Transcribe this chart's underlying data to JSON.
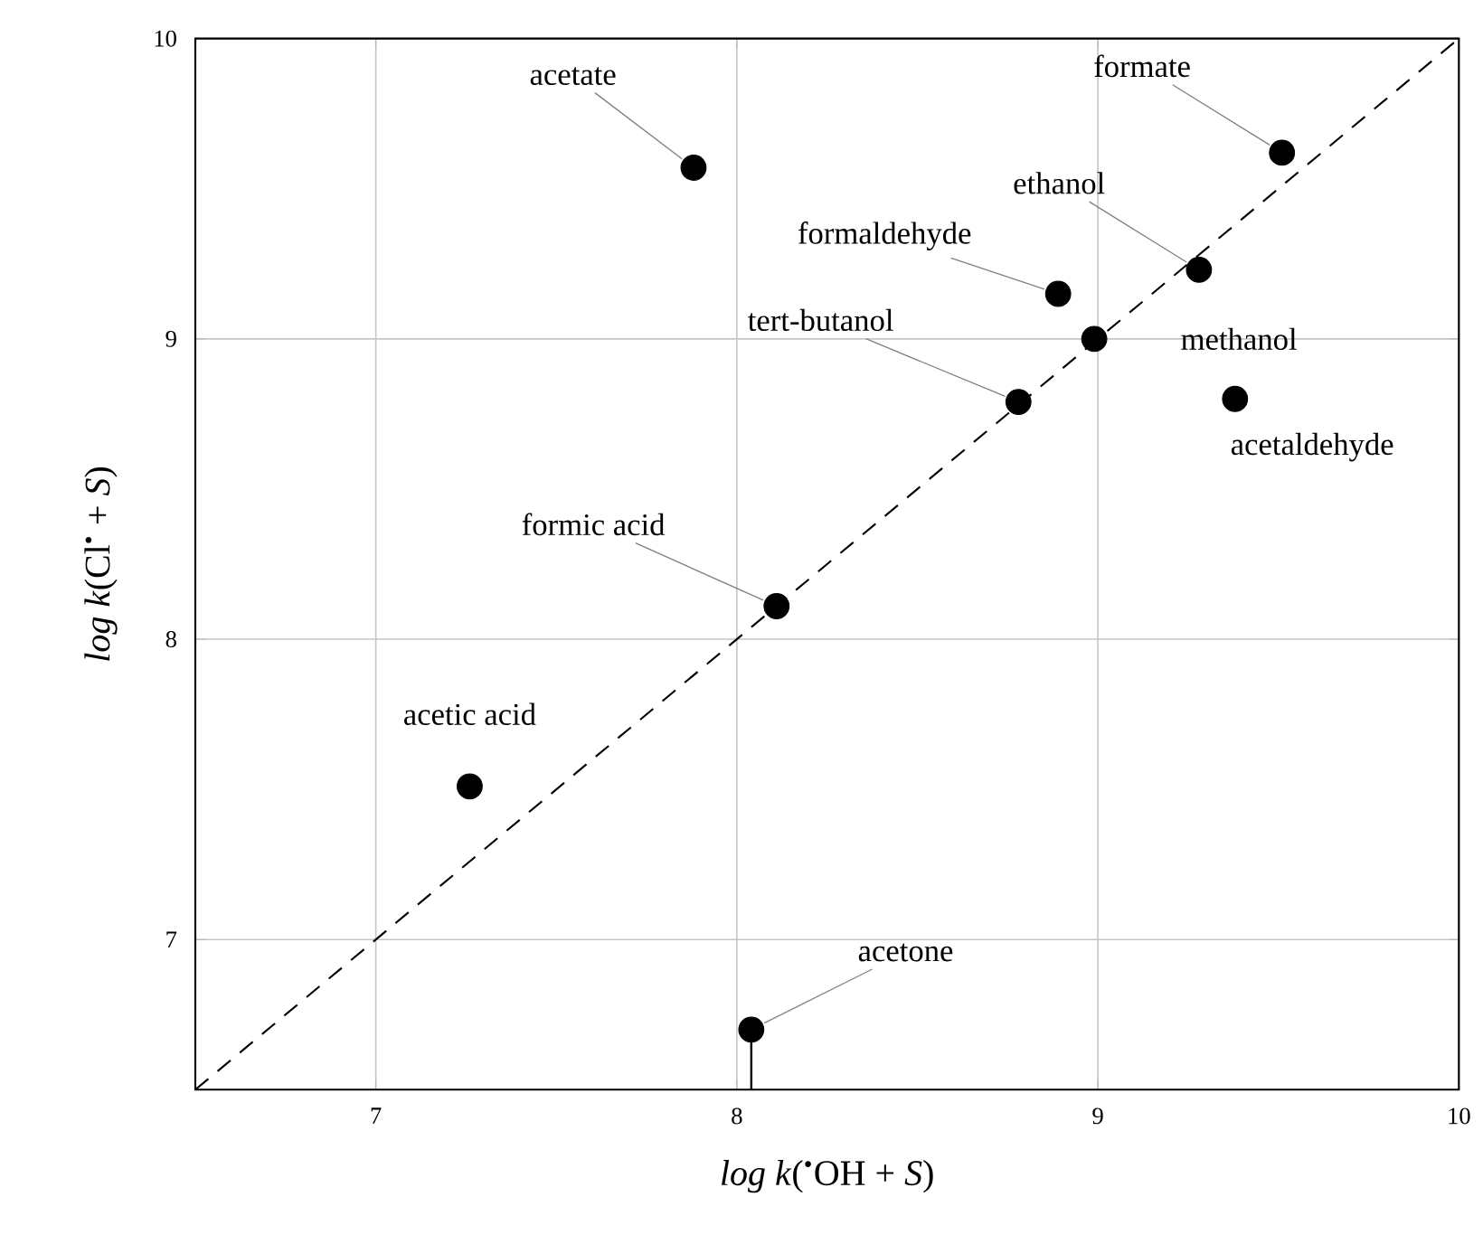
{
  "chart_data": {
    "type": "scatter",
    "xlabel": "*log k*($^{•}$OH + *S*)",
    "ylabel": "*log k*(Cl$^{•}$ + *S*)",
    "xlim": [
      6.5,
      10
    ],
    "ylim": [
      6.5,
      10
    ],
    "xticks": [
      7,
      8,
      9,
      10
    ],
    "yticks": [
      7,
      8,
      9,
      10
    ],
    "grid": true,
    "marker": "circle",
    "series": [
      {
        "type": "scatter",
        "color": "#000000",
        "x": [
          7.88,
          9.51,
          9.28,
          8.89,
          8.99,
          8.78,
          9.38,
          8.11,
          7.26,
          8.04
        ],
        "values": [
          9.57,
          9.62,
          9.23,
          9.15,
          9.0,
          8.79,
          8.8,
          8.11,
          7.51,
          6.7
        ],
        "errors": [
          null,
          null,
          null,
          null,
          null,
          null,
          null,
          null,
          null,
          [
            6.5,
            6.7
          ]
        ]
      },
      {
        "type": "line",
        "color": "#000000",
        "line_style": "dashed",
        "marker": "none",
        "x": [
          6.5,
          10
        ],
        "values": [
          6.5,
          10
        ]
      }
    ],
    "annotations": [
      {
        "text": "acetate",
        "x": 7.88,
        "y": 9.57
      },
      {
        "text": "formate",
        "x": 9.51,
        "y": 9.62
      },
      {
        "text": "ethanol",
        "x": 9.28,
        "y": 9.23
      },
      {
        "text": "formaldehyde",
        "x": 8.89,
        "y": 9.15
      },
      {
        "text": "methanol",
        "x": 8.99,
        "y": 9.0
      },
      {
        "text": "tert-butanol",
        "x": 8.78,
        "y": 8.79
      },
      {
        "text": "acetaldehyde",
        "x": 9.38,
        "y": 8.8
      },
      {
        "text": "formic acid",
        "x": 8.11,
        "y": 8.11
      },
      {
        "text": "acetic acid",
        "x": 7.26,
        "y": 7.51
      },
      {
        "text": "acetone",
        "x": 8.04,
        "y": 6.7
      }
    ]
  }
}
